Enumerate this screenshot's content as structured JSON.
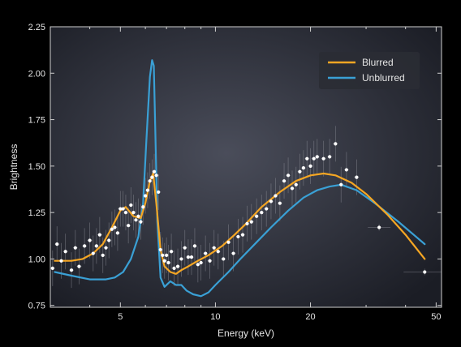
{
  "chart_data": {
    "type": "scatter",
    "xlabel": "Energy (keV)",
    "ylabel": "Brightness",
    "x_scale": "log",
    "xlim": [
      3.0,
      52.0
    ],
    "ylim": [
      0.74,
      2.25
    ],
    "x_ticks": [
      5,
      10,
      20,
      50
    ],
    "x_tick_labels": [
      "5",
      "10",
      "20",
      "50"
    ],
    "y_ticks": [
      0.75,
      1.0,
      1.25,
      1.5,
      1.75,
      2.0,
      2.25
    ],
    "y_tick_labels": [
      "0.75",
      "1.00",
      "1.25",
      "1.50",
      "1.75",
      "2.00",
      "2.25"
    ],
    "grid": false,
    "legend_position": "top-right",
    "colors": {
      "background_outer": "#000000",
      "plot_center": "#4a4d5a",
      "plot_edge": "#1b1d25",
      "legend_bg": "#2a2c34",
      "points": "#ffffff",
      "errorbars": "#8a8c96"
    },
    "series": [
      {
        "name": "Blurred",
        "kind": "line",
        "color": "#f5a623",
        "x": [
          3.1,
          3.5,
          3.8,
          4.1,
          4.4,
          4.7,
          5.0,
          5.2,
          5.5,
          5.8,
          6.0,
          6.2,
          6.35,
          6.5,
          6.7,
          6.9,
          7.2,
          7.5,
          7.8,
          8.2,
          8.8,
          9.5,
          10.5,
          11.5,
          12.5,
          14.0,
          16.0,
          18.0,
          20.0,
          22.0,
          24.0,
          27.0,
          30.0,
          35.0,
          40.0,
          46.0
        ],
        "y": [
          0.99,
          0.99,
          1.0,
          1.03,
          1.08,
          1.17,
          1.26,
          1.28,
          1.23,
          1.22,
          1.3,
          1.42,
          1.46,
          1.3,
          1.05,
          0.96,
          0.93,
          0.92,
          0.94,
          0.96,
          0.99,
          1.02,
          1.07,
          1.13,
          1.19,
          1.28,
          1.36,
          1.42,
          1.45,
          1.46,
          1.45,
          1.41,
          1.35,
          1.24,
          1.13,
          1.0
        ]
      },
      {
        "name": "Unblurred",
        "kind": "line",
        "color": "#3aa0d5",
        "x": [
          3.1,
          3.5,
          4.0,
          4.5,
          4.8,
          5.1,
          5.4,
          5.7,
          5.9,
          6.05,
          6.2,
          6.3,
          6.38,
          6.45,
          6.55,
          6.7,
          6.9,
          7.2,
          7.5,
          7.8,
          8.1,
          8.5,
          9.0,
          9.5,
          10.0,
          11.0,
          12.0,
          13.5,
          15.0,
          17.0,
          19.0,
          21.0,
          23.0,
          25.0,
          28.0,
          32.0,
          38.0,
          46.0
        ],
        "y": [
          0.93,
          0.91,
          0.89,
          0.89,
          0.9,
          0.93,
          1.0,
          1.12,
          1.3,
          1.65,
          1.98,
          2.07,
          2.04,
          1.7,
          1.2,
          0.9,
          0.85,
          0.88,
          0.86,
          0.86,
          0.83,
          0.81,
          0.8,
          0.82,
          0.86,
          0.93,
          1.0,
          1.09,
          1.17,
          1.26,
          1.33,
          1.37,
          1.39,
          1.4,
          1.37,
          1.3,
          1.2,
          1.08
        ]
      },
      {
        "name": "",
        "kind": "points",
        "color": "#ffffff",
        "x": [
          3.05,
          3.15,
          3.25,
          3.35,
          3.5,
          3.6,
          3.7,
          3.85,
          4.0,
          4.1,
          4.2,
          4.3,
          4.4,
          4.5,
          4.6,
          4.7,
          4.8,
          4.9,
          5.0,
          5.1,
          5.2,
          5.3,
          5.4,
          5.5,
          5.6,
          5.7,
          5.8,
          5.9,
          6.0,
          6.1,
          6.2,
          6.3,
          6.4,
          6.5,
          6.6,
          6.7,
          6.8,
          6.9,
          7.0,
          7.1,
          7.25,
          7.4,
          7.6,
          7.8,
          8.0,
          8.2,
          8.4,
          8.6,
          8.8,
          9.0,
          9.3,
          9.6,
          9.9,
          10.2,
          10.6,
          11.0,
          11.4,
          11.8,
          12.2,
          12.6,
          13.0,
          13.5,
          14.0,
          14.5,
          15.0,
          15.5,
          16.0,
          16.5,
          17.0,
          17.5,
          18.0,
          18.5,
          19.0,
          19.5,
          20.0,
          20.5,
          21.0,
          22.0,
          23.0,
          24.0,
          25.0,
          26.0,
          28.0,
          33.0,
          46.0
        ],
        "y": [
          0.95,
          1.08,
          0.99,
          1.04,
          0.94,
          1.06,
          0.96,
          1.07,
          1.1,
          1.03,
          1.07,
          1.13,
          1.02,
          1.06,
          1.1,
          1.16,
          1.17,
          1.14,
          1.27,
          1.27,
          1.25,
          1.18,
          1.29,
          1.25,
          1.21,
          1.23,
          1.2,
          1.28,
          1.34,
          1.37,
          1.42,
          1.44,
          1.47,
          1.45,
          1.36,
          1.05,
          1.02,
          0.99,
          1.02,
          0.98,
          1.04,
          0.95,
          0.96,
          1.0,
          1.06,
          1.01,
          1.01,
          1.07,
          0.97,
          0.98,
          1.03,
          0.99,
          1.06,
          1.04,
          1.0,
          1.09,
          1.03,
          1.12,
          1.13,
          1.19,
          1.2,
          1.23,
          1.25,
          1.27,
          1.31,
          1.34,
          1.3,
          1.42,
          1.45,
          1.38,
          1.4,
          1.47,
          1.49,
          1.54,
          1.5,
          1.54,
          1.55,
          1.54,
          1.55,
          1.62,
          1.4,
          1.48,
          1.44,
          1.17,
          0.93
        ]
      }
    ]
  }
}
